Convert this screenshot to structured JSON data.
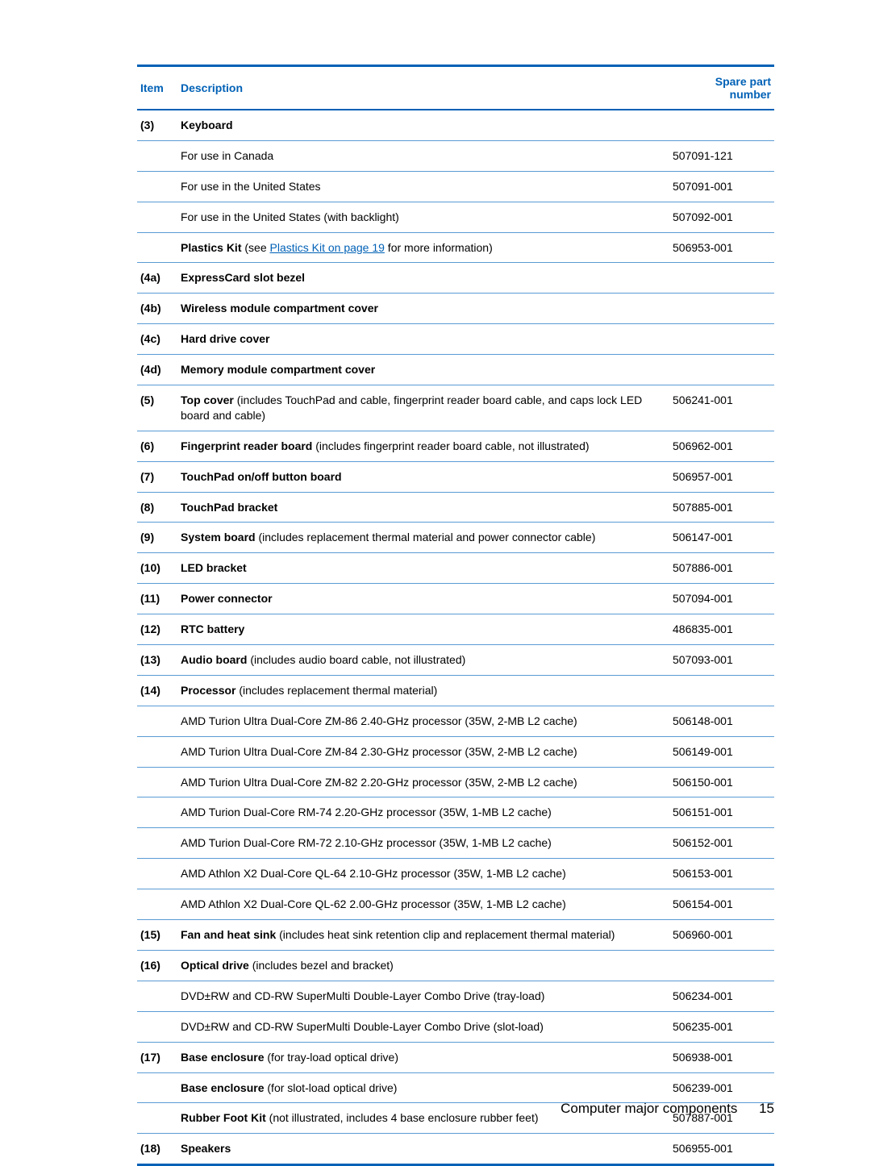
{
  "header": {
    "item": "Item",
    "description": "Description",
    "part": "Spare part number"
  },
  "rows": [
    {
      "item": "(3)",
      "desc": {
        "spans": [
          {
            "text": "Keyboard",
            "bold": true
          }
        ]
      },
      "part": ""
    },
    {
      "item": "",
      "desc": {
        "spans": [
          {
            "text": "For use in Canada"
          }
        ]
      },
      "part": "507091-121"
    },
    {
      "item": "",
      "desc": {
        "spans": [
          {
            "text": "For use in the United States"
          }
        ]
      },
      "part": "507091-001"
    },
    {
      "item": "",
      "desc": {
        "spans": [
          {
            "text": "For use in the United States (with backlight)"
          }
        ]
      },
      "part": "507092-001"
    },
    {
      "item": "",
      "desc": {
        "spans": [
          {
            "text": "Plastics Kit",
            "bold": true
          },
          {
            "text": " (see "
          },
          {
            "text": "Plastics Kit on page 19",
            "link": true
          },
          {
            "text": " for more information)"
          }
        ]
      },
      "part": "506953-001"
    },
    {
      "item": "(4a)",
      "desc": {
        "spans": [
          {
            "text": "ExpressCard slot bezel",
            "bold": true
          }
        ]
      },
      "part": ""
    },
    {
      "item": "(4b)",
      "desc": {
        "spans": [
          {
            "text": "Wireless module compartment cover",
            "bold": true
          }
        ]
      },
      "part": ""
    },
    {
      "item": "(4c)",
      "desc": {
        "spans": [
          {
            "text": "Hard drive cover",
            "bold": true
          }
        ]
      },
      "part": ""
    },
    {
      "item": "(4d)",
      "desc": {
        "spans": [
          {
            "text": "Memory module compartment cover",
            "bold": true
          }
        ]
      },
      "part": ""
    },
    {
      "item": "(5)",
      "desc": {
        "spans": [
          {
            "text": "Top cover",
            "bold": true
          },
          {
            "text": " (includes TouchPad and cable, fingerprint reader board cable, and caps lock LED board and cable)"
          }
        ]
      },
      "part": "506241-001"
    },
    {
      "item": "(6)",
      "desc": {
        "spans": [
          {
            "text": "Fingerprint reader board",
            "bold": true
          },
          {
            "text": " (includes fingerprint reader board cable, not illustrated)"
          }
        ]
      },
      "part": "506962-001"
    },
    {
      "item": "(7)",
      "desc": {
        "spans": [
          {
            "text": "TouchPad on/off button board",
            "bold": true
          }
        ]
      },
      "part": "506957-001"
    },
    {
      "item": "(8)",
      "desc": {
        "spans": [
          {
            "text": "TouchPad bracket",
            "bold": true
          }
        ]
      },
      "part": "507885-001"
    },
    {
      "item": "(9)",
      "desc": {
        "spans": [
          {
            "text": "System board",
            "bold": true
          },
          {
            "text": " (includes replacement thermal material and power connector cable)"
          }
        ]
      },
      "part": "506147-001"
    },
    {
      "item": "(10)",
      "desc": {
        "spans": [
          {
            "text": "LED bracket",
            "bold": true
          }
        ]
      },
      "part": "507886-001"
    },
    {
      "item": "(11)",
      "desc": {
        "spans": [
          {
            "text": "Power connector",
            "bold": true
          }
        ]
      },
      "part": "507094-001"
    },
    {
      "item": "(12)",
      "desc": {
        "spans": [
          {
            "text": "RTC battery",
            "bold": true
          }
        ]
      },
      "part": "486835-001"
    },
    {
      "item": "(13)",
      "desc": {
        "spans": [
          {
            "text": "Audio board",
            "bold": true
          },
          {
            "text": " (includes audio board cable, not illustrated)"
          }
        ]
      },
      "part": "507093-001"
    },
    {
      "item": "(14)",
      "desc": {
        "spans": [
          {
            "text": "Processor",
            "bold": true
          },
          {
            "text": " (includes replacement thermal material)"
          }
        ]
      },
      "part": ""
    },
    {
      "item": "",
      "desc": {
        "spans": [
          {
            "text": "AMD Turion Ultra Dual-Core ZM-86 2.40-GHz processor (35W, 2-MB L2 cache)"
          }
        ]
      },
      "part": "506148-001"
    },
    {
      "item": "",
      "desc": {
        "spans": [
          {
            "text": "AMD Turion Ultra Dual-Core ZM-84 2.30-GHz processor (35W, 2-MB L2 cache)"
          }
        ]
      },
      "part": "506149-001"
    },
    {
      "item": "",
      "desc": {
        "spans": [
          {
            "text": "AMD Turion Ultra Dual-Core ZM-82 2.20-GHz processor (35W, 2-MB L2 cache)"
          }
        ]
      },
      "part": "506150-001"
    },
    {
      "item": "",
      "desc": {
        "spans": [
          {
            "text": "AMD Turion Dual-Core RM-74 2.20-GHz processor (35W, 1-MB L2 cache)"
          }
        ]
      },
      "part": "506151-001"
    },
    {
      "item": "",
      "desc": {
        "spans": [
          {
            "text": "AMD Turion Dual-Core RM-72 2.10-GHz processor (35W, 1-MB L2 cache)"
          }
        ]
      },
      "part": "506152-001"
    },
    {
      "item": "",
      "desc": {
        "spans": [
          {
            "text": "AMD Athlon X2 Dual-Core QL-64 2.10-GHz processor (35W, 1-MB L2 cache)"
          }
        ]
      },
      "part": "506153-001"
    },
    {
      "item": "",
      "desc": {
        "spans": [
          {
            "text": "AMD Athlon X2 Dual-Core QL-62 2.00-GHz processor (35W, 1-MB L2 cache)"
          }
        ]
      },
      "part": "506154-001"
    },
    {
      "item": "(15)",
      "desc": {
        "spans": [
          {
            "text": "Fan and heat sink",
            "bold": true
          },
          {
            "text": " (includes heat sink retention clip and replacement thermal material)"
          }
        ]
      },
      "part": "506960-001"
    },
    {
      "item": "(16)",
      "desc": {
        "spans": [
          {
            "text": "Optical drive",
            "bold": true
          },
          {
            "text": " (includes bezel and bracket)"
          }
        ]
      },
      "part": ""
    },
    {
      "item": "",
      "desc": {
        "spans": [
          {
            "text": "DVD±RW and CD-RW SuperMulti Double-Layer Combo Drive (tray-load)"
          }
        ]
      },
      "part": "506234-001"
    },
    {
      "item": "",
      "desc": {
        "spans": [
          {
            "text": "DVD±RW and CD-RW SuperMulti Double-Layer Combo Drive (slot-load)"
          }
        ]
      },
      "part": "506235-001"
    },
    {
      "item": "(17)",
      "desc": {
        "spans": [
          {
            "text": "Base enclosure",
            "bold": true
          },
          {
            "text": " (for tray-load optical drive)"
          }
        ]
      },
      "part": "506938-001"
    },
    {
      "item": "",
      "desc": {
        "spans": [
          {
            "text": "Base enclosure",
            "bold": true
          },
          {
            "text": " (for slot-load optical drive)"
          }
        ]
      },
      "part": "506239-001"
    },
    {
      "item": "",
      "desc": {
        "spans": [
          {
            "text": "Rubber Foot Kit",
            "bold": true
          },
          {
            "text": " (not illustrated, includes 4 base enclosure rubber feet)"
          }
        ]
      },
      "part": "507887-001"
    },
    {
      "item": "(18)",
      "desc": {
        "spans": [
          {
            "text": "Speakers",
            "bold": true
          }
        ]
      },
      "part": "506955-001"
    }
  ],
  "footer": {
    "title": "Computer major components",
    "page": "15"
  }
}
